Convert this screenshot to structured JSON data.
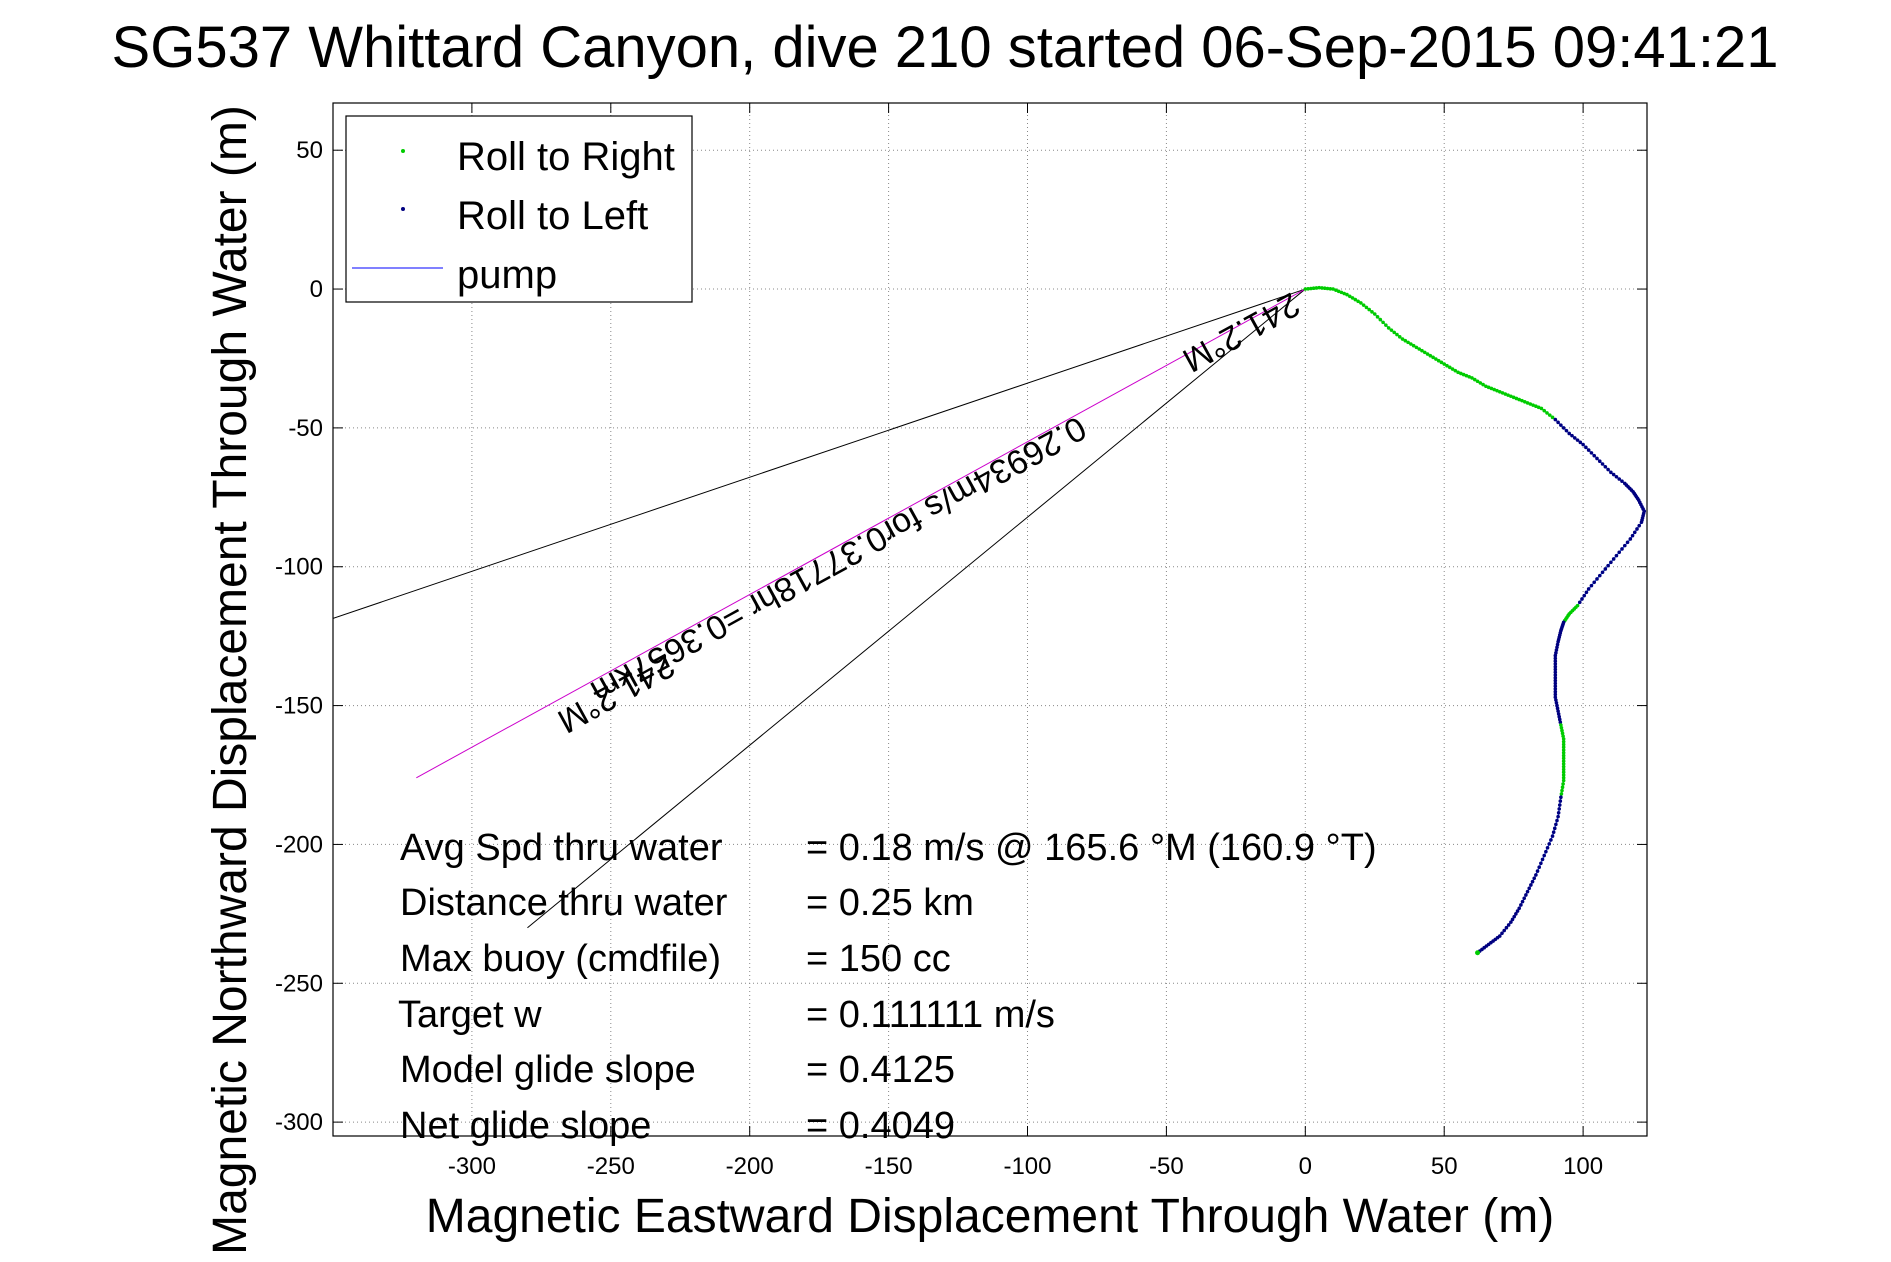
{
  "chart_data": {
    "type": "scatter",
    "title": "SG537 Whittard Canyon, dive 210 started 06-Sep-2015 09:41:21",
    "xlabel": "Magnetic Eastward Displacement Through Water (m)",
    "ylabel": "Magnetic Northward Displacement Through Water (m)",
    "xlim": [
      -350,
      123
    ],
    "ylim": [
      -305,
      67
    ],
    "xticks": [
      -300,
      -250,
      -200,
      -150,
      -100,
      -50,
      0,
      50,
      100
    ],
    "yticks": [
      50,
      0,
      -50,
      -100,
      -150,
      -200,
      -250,
      -300
    ],
    "grid": true,
    "legend_position": "top-left",
    "legend": [
      {
        "label": "Roll to Right",
        "marker": "dot",
        "color": "#00cc00"
      },
      {
        "label": "Roll to Left",
        "marker": "dot",
        "color": "#000080"
      },
      {
        "label": "pump",
        "marker": "line",
        "color": "#0000ff"
      }
    ],
    "track": {
      "color": "#2266ee",
      "points": [
        [
          0,
          0
        ],
        [
          5,
          0.5
        ],
        [
          10,
          0
        ],
        [
          15,
          -2
        ],
        [
          20,
          -5
        ],
        [
          25,
          -9
        ],
        [
          30,
          -14
        ],
        [
          35,
          -18
        ],
        [
          40,
          -21
        ],
        [
          45,
          -24
        ],
        [
          50,
          -27
        ],
        [
          55,
          -30
        ],
        [
          60,
          -32
        ],
        [
          65,
          -35
        ],
        [
          70,
          -37
        ],
        [
          75,
          -39
        ],
        [
          80,
          -41
        ],
        [
          85,
          -43
        ],
        [
          90,
          -47
        ],
        [
          95,
          -52
        ],
        [
          100,
          -56
        ],
        [
          105,
          -61
        ],
        [
          110,
          -66
        ],
        [
          115,
          -70
        ],
        [
          118,
          -73
        ],
        [
          120,
          -76
        ],
        [
          122,
          -80
        ],
        [
          121,
          -84
        ],
        [
          117,
          -90
        ],
        [
          112,
          -96
        ],
        [
          107,
          -102
        ],
        [
          102,
          -108
        ],
        [
          98,
          -114
        ],
        [
          95,
          -117
        ],
        [
          93,
          -120
        ],
        [
          92,
          -123
        ],
        [
          91,
          -127
        ],
        [
          90,
          -132
        ],
        [
          90,
          -137
        ],
        [
          90,
          -142
        ],
        [
          90,
          -147
        ],
        [
          91,
          -152
        ],
        [
          92,
          -157
        ],
        [
          93,
          -162
        ],
        [
          93,
          -167
        ],
        [
          93,
          -172
        ],
        [
          93,
          -177
        ],
        [
          92,
          -183
        ],
        [
          91,
          -190
        ],
        [
          89,
          -197
        ],
        [
          86,
          -204
        ],
        [
          83,
          -211
        ],
        [
          80,
          -217
        ],
        [
          77,
          -223
        ],
        [
          74,
          -228
        ],
        [
          70,
          -233
        ],
        [
          66,
          -236
        ],
        [
          62,
          -239
        ]
      ],
      "roll_left_ranges": [
        [
          18,
          31
        ],
        [
          34,
          41
        ],
        [
          47,
          57
        ]
      ]
    },
    "heading_lines": {
      "color": "#000000",
      "lines": [
        [
          [
            0,
            0
          ],
          [
            -350,
            -118.6
          ]
        ],
        [
          [
            0,
            0
          ],
          [
            -280,
            -230
          ]
        ]
      ]
    },
    "current_line": {
      "color": "#cc00cc",
      "points": [
        [
          0,
          0
        ],
        [
          -320,
          -176
        ]
      ]
    },
    "rotated_labels": [
      {
        "text": "0.26934m/s for0.37718hr =0.3657km",
        "at": [
          -170,
          -94
        ],
        "angle": 151.2
      },
      {
        "text": "241.2°M",
        "at": [
          -25,
          -12
        ],
        "angle": 151.2
      },
      {
        "text": "241.2°M",
        "at": [
          -250,
          -142
        ],
        "angle": 151.2
      }
    ],
    "stats": [
      {
        "label": "Avg Spd thru water",
        "value": "=  0.18 m/s @ 165.6 °M (160.9 °T)"
      },
      {
        "label": "Distance thru water",
        "value": "=  0.25 km"
      },
      {
        "label": "Max buoy (cmdfile)",
        "value": "= 150 cc"
      },
      {
        "label": "Target w",
        "value": "= 0.111111 m/s"
      },
      {
        "label": "Model glide slope",
        "value": "= 0.4125"
      },
      {
        "label": "Net glide slope",
        "value": "= 0.4049"
      }
    ]
  }
}
